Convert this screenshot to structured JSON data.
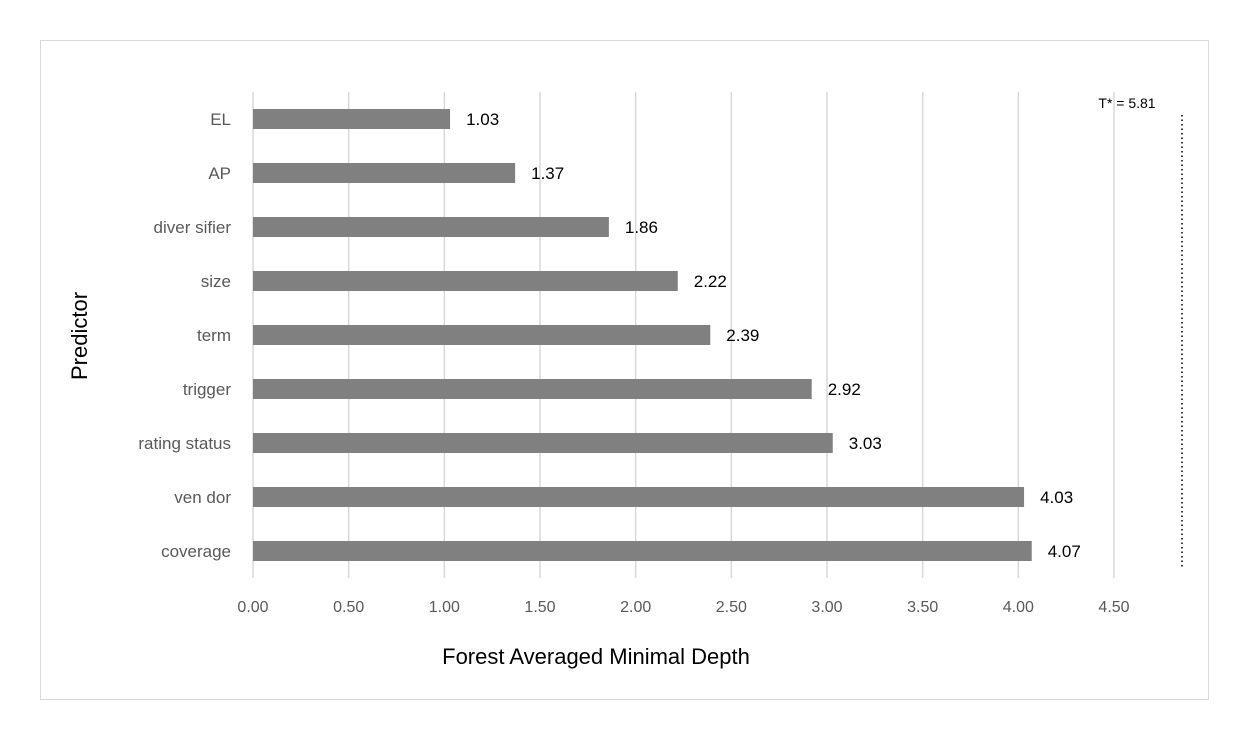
{
  "chart_data": {
    "type": "bar",
    "orientation": "horizontal",
    "title": "",
    "xlabel": "Forest Averaged Minimal Depth",
    "ylabel": "Predictor",
    "categories": [
      "EL",
      "AP",
      "diver sifier",
      "size",
      "term",
      "trigger",
      "rating status",
      "ven dor",
      "coverage"
    ],
    "values": [
      1.03,
      1.37,
      1.86,
      2.22,
      2.39,
      2.92,
      3.03,
      4.03,
      4.07
    ],
    "data_labels": [
      "1.03",
      "1.37",
      "1.86",
      "2.22",
      "2.39",
      "2.92",
      "3.03",
      "4.03",
      "4.07"
    ],
    "xlim": [
      0,
      4.5
    ],
    "xticks": [
      0,
      0.5,
      1,
      1.5,
      2,
      2.5,
      3,
      3.5,
      4,
      4.5
    ],
    "xtick_labels": [
      "0.00",
      "0.50",
      "1.00",
      "1.50",
      "2.00",
      "2.50",
      "3.00",
      "3.50",
      "4.00",
      "4.50"
    ],
    "grid": "vertical",
    "bar_color": "#808080",
    "grid_color": "#d9d9d9",
    "annotation": {
      "text": "T* = 5.81",
      "value": 5.81,
      "line_style": "dotted"
    }
  }
}
